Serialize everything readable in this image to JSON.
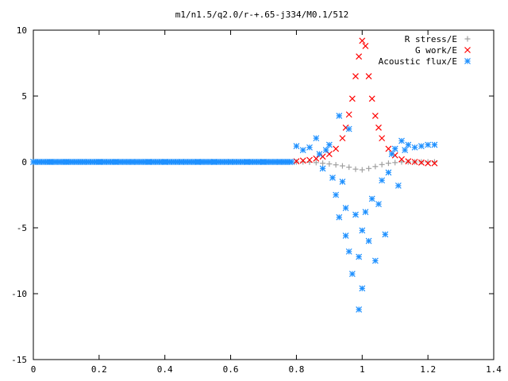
{
  "chart_data": {
    "type": "scatter",
    "title": "m1/n1.5/q2.0/r-+.65-j334/M0.1/512",
    "xlabel": "",
    "ylabel": "",
    "xlim": [
      0,
      1.4
    ],
    "ylim": [
      -15,
      10
    ],
    "x_ticks": [
      "0",
      "0.2",
      "0.4",
      "0.6",
      "0.8",
      "1",
      "1.2",
      "1.4"
    ],
    "y_ticks": [
      "10",
      "5",
      "0",
      "-5",
      "-10",
      "-15"
    ],
    "grid": false,
    "legend_position": "top-right",
    "series": [
      {
        "name": "R stress/E",
        "marker": "plus",
        "color": "#a0a0a0",
        "points": [
          [
            0.8,
            0.0
          ],
          [
            0.82,
            0.0
          ],
          [
            0.84,
            -0.02
          ],
          [
            0.86,
            -0.05
          ],
          [
            0.88,
            -0.1
          ],
          [
            0.9,
            -0.15
          ],
          [
            0.92,
            -0.22
          ],
          [
            0.94,
            -0.3
          ],
          [
            0.96,
            -0.4
          ],
          [
            0.98,
            -0.55
          ],
          [
            1.0,
            -0.6
          ],
          [
            1.02,
            -0.5
          ],
          [
            1.04,
            -0.35
          ],
          [
            1.06,
            -0.2
          ],
          [
            1.08,
            -0.1
          ],
          [
            1.1,
            -0.05
          ],
          [
            1.12,
            0.0
          ],
          [
            1.14,
            0.0
          ],
          [
            1.16,
            0.0
          ],
          [
            1.18,
            0.0
          ],
          [
            1.2,
            0.0
          ],
          [
            1.22,
            0.0
          ]
        ]
      },
      {
        "name": "G work/E",
        "marker": "cross",
        "color": "#ff0000",
        "points": [
          [
            0.8,
            0.05
          ],
          [
            0.82,
            0.1
          ],
          [
            0.84,
            0.15
          ],
          [
            0.86,
            0.25
          ],
          [
            0.88,
            0.4
          ],
          [
            0.9,
            0.6
          ],
          [
            0.92,
            1.0
          ],
          [
            0.94,
            1.8
          ],
          [
            0.95,
            2.6
          ],
          [
            0.96,
            3.6
          ],
          [
            0.97,
            4.8
          ],
          [
            0.98,
            6.5
          ],
          [
            0.99,
            8.0
          ],
          [
            1.0,
            9.2
          ],
          [
            1.01,
            8.8
          ],
          [
            1.02,
            6.5
          ],
          [
            1.03,
            4.8
          ],
          [
            1.04,
            3.5
          ],
          [
            1.05,
            2.6
          ],
          [
            1.06,
            1.8
          ],
          [
            1.08,
            1.0
          ],
          [
            1.1,
            0.5
          ],
          [
            1.12,
            0.2
          ],
          [
            1.14,
            0.05
          ],
          [
            1.16,
            0.0
          ],
          [
            1.18,
            -0.05
          ],
          [
            1.2,
            -0.1
          ],
          [
            1.22,
            -0.1
          ]
        ]
      },
      {
        "name": "Acoustic flux/E",
        "marker": "star",
        "color": "#1e90ff",
        "points": [
          [
            0.0,
            0
          ],
          [
            0.05,
            0
          ],
          [
            0.1,
            0
          ],
          [
            0.15,
            0
          ],
          [
            0.2,
            0
          ],
          [
            0.25,
            0
          ],
          [
            0.3,
            0
          ],
          [
            0.35,
            0
          ],
          [
            0.4,
            0
          ],
          [
            0.45,
            0
          ],
          [
            0.5,
            0
          ],
          [
            0.55,
            0
          ],
          [
            0.6,
            0
          ],
          [
            0.65,
            0
          ],
          [
            0.7,
            0
          ],
          [
            0.75,
            0
          ],
          [
            0.78,
            0
          ],
          [
            0.8,
            1.2
          ],
          [
            0.82,
            0.9
          ],
          [
            0.84,
            1.1
          ],
          [
            0.86,
            1.8
          ],
          [
            0.87,
            0.6
          ],
          [
            0.88,
            -0.5
          ],
          [
            0.89,
            0.9
          ],
          [
            0.9,
            1.3
          ],
          [
            0.91,
            -1.2
          ],
          [
            0.92,
            -2.5
          ],
          [
            0.93,
            3.5
          ],
          [
            0.93,
            -4.2
          ],
          [
            0.94,
            -1.5
          ],
          [
            0.95,
            -3.5
          ],
          [
            0.95,
            -5.6
          ],
          [
            0.96,
            2.5
          ],
          [
            0.96,
            -6.8
          ],
          [
            0.97,
            -8.5
          ],
          [
            0.98,
            -4.0
          ],
          [
            0.99,
            -7.2
          ],
          [
            0.99,
            -11.2
          ],
          [
            1.0,
            -9.6
          ],
          [
            1.0,
            -5.2
          ],
          [
            1.01,
            -3.8
          ],
          [
            1.02,
            -6.0
          ],
          [
            1.03,
            -2.8
          ],
          [
            1.04,
            -7.5
          ],
          [
            1.05,
            -3.2
          ],
          [
            1.06,
            -1.4
          ],
          [
            1.07,
            -5.5
          ],
          [
            1.08,
            -0.8
          ],
          [
            1.09,
            0.6
          ],
          [
            1.1,
            1.0
          ],
          [
            1.11,
            -1.8
          ],
          [
            1.12,
            1.6
          ],
          [
            1.13,
            0.9
          ],
          [
            1.14,
            1.3
          ],
          [
            1.16,
            1.1
          ],
          [
            1.18,
            1.2
          ],
          [
            1.2,
            1.3
          ],
          [
            1.22,
            1.3
          ]
        ]
      }
    ]
  }
}
